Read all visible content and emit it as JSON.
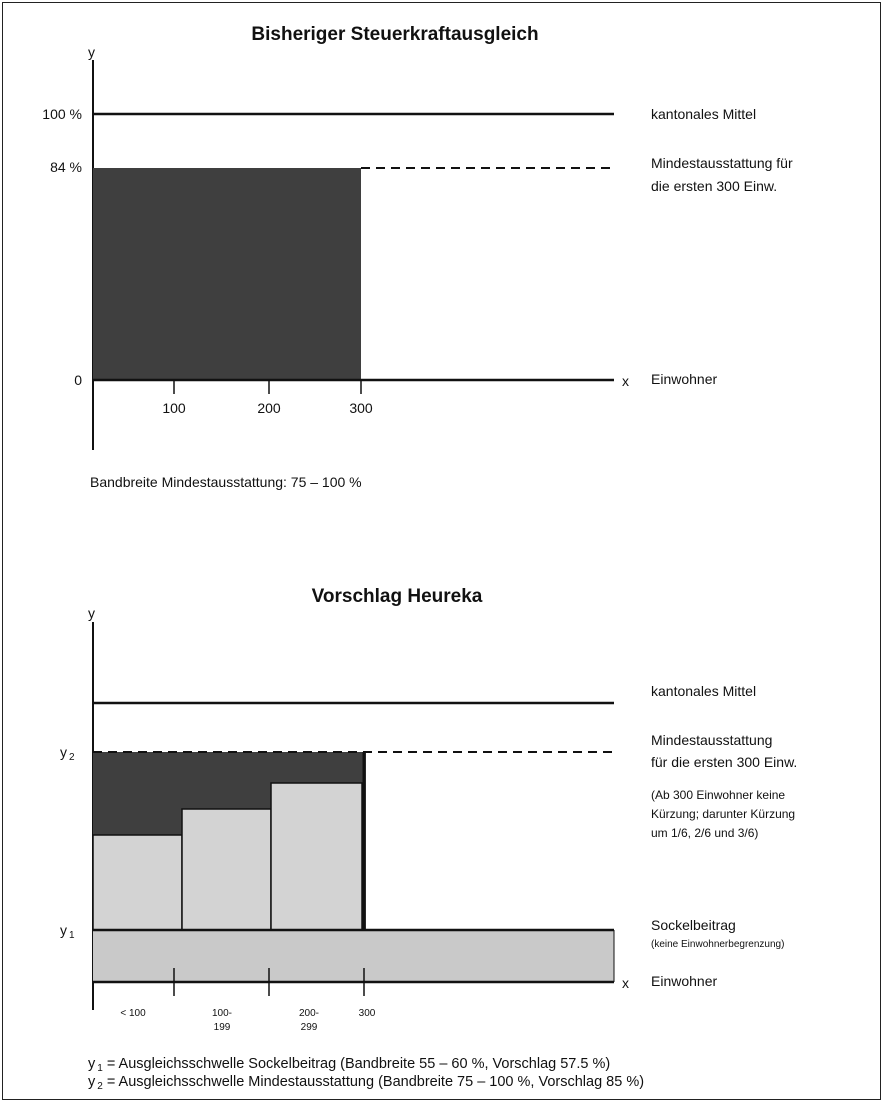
{
  "top": {
    "title": "Bisheriger Steuerkraftausgleich",
    "y_axis": "y",
    "x_axis": "x",
    "x_label": "Einwohner",
    "y_ticks": {
      "t100": "100 %",
      "t84": "84 %",
      "t0": "0"
    },
    "x_ticks": [
      "100",
      "200",
      "300"
    ],
    "line_mean": "kantonales Mittel",
    "line_min_1": "Mindestausstattung für",
    "line_min_2": "die ersten 300 Einw.",
    "bandwidth": "Bandbreite Mindestausstattung: 75 – 100 %"
  },
  "bottom": {
    "title": "Vorschlag Heureka",
    "y_axis": "y",
    "x_axis": "x",
    "x_label": "Einwohner",
    "y2_main": "y",
    "y2_sub": "2",
    "y1_main": "y",
    "y1_sub": "1",
    "x_ticks": [
      {
        "l1": "< 100",
        "l2": ""
      },
      {
        "l1": "100-",
        "l2": "199"
      },
      {
        "l1": "200-",
        "l2": "299"
      },
      {
        "l1": "300",
        "l2": ""
      }
    ],
    "line_mean": "kantonales Mittel",
    "line_min_1": "Mindestausstattung",
    "line_min_2": "für die ersten 300 Einw.",
    "note_1": "(Ab 300 Einwohner keine",
    "note_2": "Kürzung; darunter Kürzung",
    "note_3": "um 1/6, 2/6 und 3/6)",
    "sockel": "Sockelbeitrag",
    "sockel_note": "(keine Einwohnerbegrenzung)"
  },
  "footnote": {
    "y1_main": "y",
    "y1_sub": "1",
    "y1_text": " = Ausgleichsschwelle Sockelbeitrag (Bandbreite 55  – 60 %, Vorschlag 57.5 %)",
    "y2_main": "y",
    "y2_sub": "2",
    "y2_text": " = Ausgleichsschwelle Mindestausstattung (Bandbreite 75 – 100 %, Vorschlag 85 %)"
  },
  "colors": {
    "dark_fill": "#3f3f3f",
    "light_fill": "#d3d3d3",
    "sockel_fill": "#c9c9c9",
    "line": "#111111"
  }
}
